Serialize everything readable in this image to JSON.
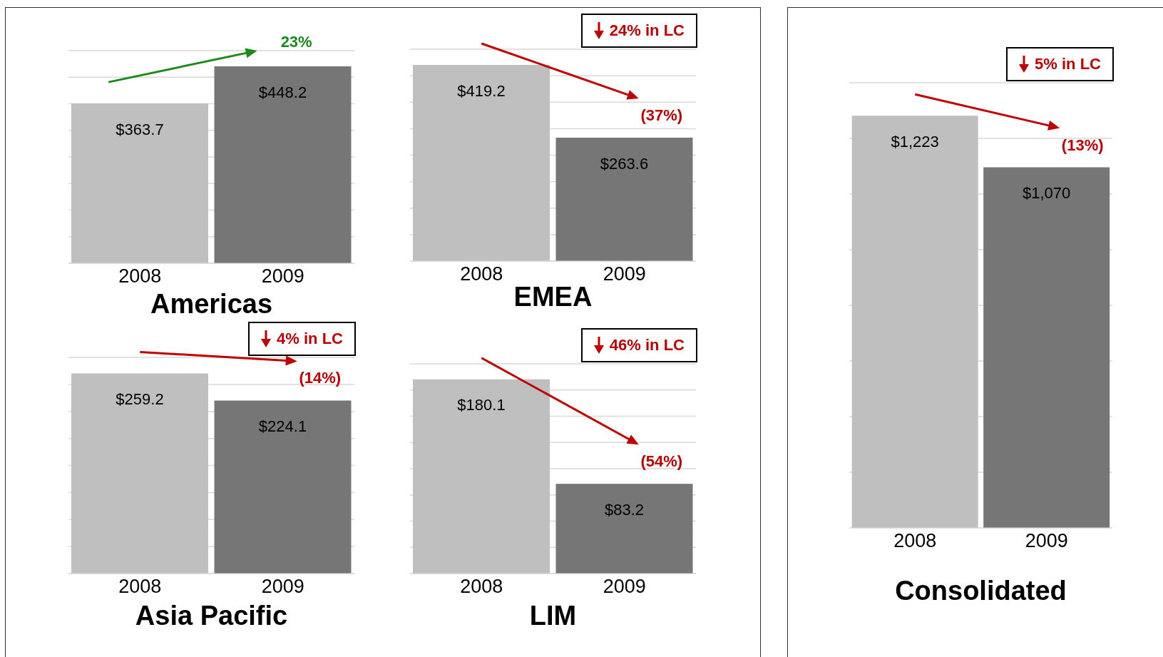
{
  "chart_data": [
    {
      "type": "bar",
      "title": "Americas",
      "categories": [
        "2008",
        "2009"
      ],
      "values": [
        363.7,
        448.2
      ],
      "colors": [
        "#bfbfbf",
        "#767676"
      ],
      "value_labels": [
        "$363.7",
        "$448.2"
      ],
      "grid": "y",
      "tick_labels": "x",
      "annotations": [
        "23%"
      ]
    },
    {
      "type": "bar",
      "title": "EMEA",
      "categories": [
        "2008",
        "2009"
      ],
      "values": [
        419.2,
        263.6
      ],
      "colors": [
        "#bfbfbf",
        "#767676"
      ],
      "value_labels": [
        "$419.2",
        "$263.6"
      ],
      "grid": "y",
      "tick_labels": "x",
      "annotations": [
        "24% in LC",
        "(37%)"
      ]
    },
    {
      "type": "bar",
      "title": "Asia Pacific",
      "categories": [
        "2008",
        "2009"
      ],
      "values": [
        259.2,
        224.1
      ],
      "colors": [
        "#bfbfbf",
        "#767676"
      ],
      "value_labels": [
        "$259.2",
        "$224.1"
      ],
      "grid": "y",
      "tick_labels": "x",
      "annotations": [
        "4% in LC",
        "(14%)"
      ]
    },
    {
      "type": "bar",
      "title": "LIM",
      "categories": [
        "2008",
        "2009"
      ],
      "values": [
        180.1,
        83.2
      ],
      "colors": [
        "#bfbfbf",
        "#767676"
      ],
      "value_labels": [
        "$180.1",
        "$83.2"
      ],
      "grid": "y",
      "tick_labels": "x",
      "annotations": [
        "46% in LC",
        "(54%)"
      ]
    },
    {
      "type": "bar",
      "title": "Consolidated",
      "categories": [
        "2008",
        "2009"
      ],
      "values": [
        1223,
        1070
      ],
      "colors": [
        "#bfbfbf",
        "#767676"
      ],
      "value_labels": [
        "$1,223",
        "$1,070"
      ],
      "grid": "y",
      "tick_labels": "x",
      "annotations": [
        "5% in LC",
        "(13%)"
      ]
    }
  ]
}
